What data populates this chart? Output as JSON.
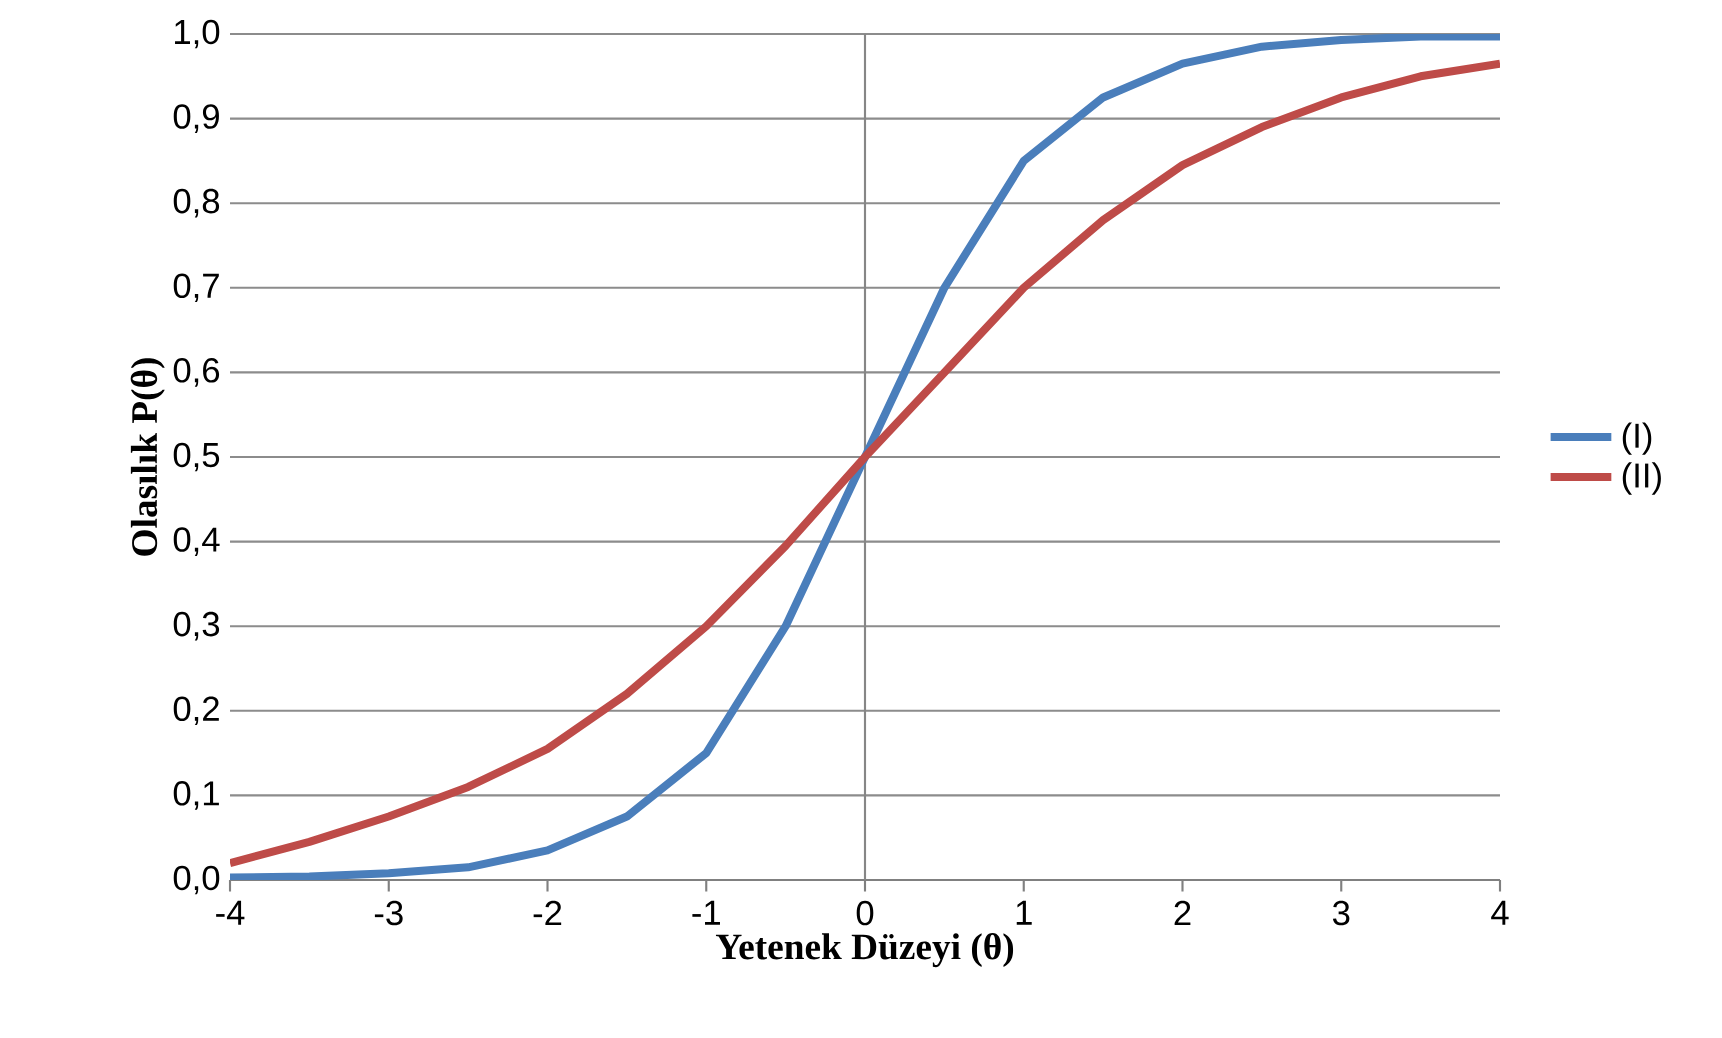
{
  "chart_data": {
    "type": "line",
    "xlabel": "Yetenek Düzeyi (θ)",
    "ylabel": "Olasılık   P(θ)",
    "x": [
      -4,
      -3.5,
      -3,
      -2.5,
      -2,
      -1.5,
      -1,
      -0.5,
      0,
      0.5,
      1,
      1.5,
      2,
      2.5,
      3,
      3.5,
      4
    ],
    "series": [
      {
        "name": "(I)",
        "color": "#4a7ebb",
        "values": [
          0.003,
          0.004,
          0.008,
          0.015,
          0.035,
          0.075,
          0.15,
          0.3,
          0.5,
          0.7,
          0.85,
          0.925,
          0.965,
          0.985,
          0.993,
          0.997,
          0.997
        ]
      },
      {
        "name": "(II)",
        "color": "#be4b48",
        "values": [
          0.02,
          0.045,
          0.075,
          0.11,
          0.155,
          0.22,
          0.3,
          0.395,
          0.5,
          0.6,
          0.7,
          0.78,
          0.845,
          0.89,
          0.925,
          0.95,
          0.965
        ]
      }
    ],
    "xlim": [
      -4,
      4
    ],
    "ylim": [
      0,
      1
    ],
    "xticks": [
      -4,
      -3,
      -2,
      -1,
      0,
      1,
      2,
      3,
      4
    ],
    "yticks": [
      {
        "value": 0,
        "label": "0,0"
      },
      {
        "value": 0.1,
        "label": "0,1"
      },
      {
        "value": 0.2,
        "label": "0,2"
      },
      {
        "value": 0.3,
        "label": "0,3"
      },
      {
        "value": 0.4,
        "label": "0,4"
      },
      {
        "value": 0.5,
        "label": "0,5"
      },
      {
        "value": 0.6,
        "label": "0,6"
      },
      {
        "value": 0.7,
        "label": "0,7"
      },
      {
        "value": 0.8,
        "label": "0,8"
      },
      {
        "value": 0.9,
        "label": "0,9"
      },
      {
        "value": 1,
        "label": "1,0"
      }
    ],
    "ref_lines": [
      {
        "axis": "x",
        "value": 0,
        "color": "#868686"
      }
    ],
    "grid": "y",
    "legend": "right",
    "marker": "none",
    "line_style": "solid"
  }
}
